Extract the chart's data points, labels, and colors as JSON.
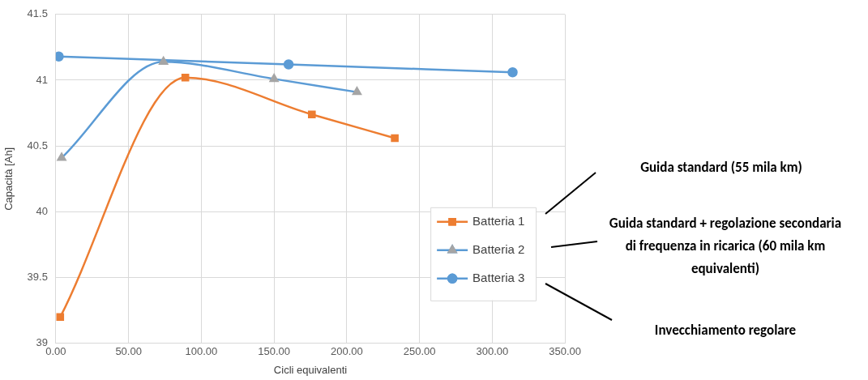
{
  "chart_data": {
    "type": "line",
    "xlabel": "Cicli equivalenti",
    "ylabel": "Capacità [Ah]",
    "xlim": [
      0,
      350
    ],
    "xticks": [
      {
        "value": 0,
        "label": "0.00"
      },
      {
        "value": 50,
        "label": "50.00"
      },
      {
        "value": 100,
        "label": "100.00"
      },
      {
        "value": 150,
        "label": "150.00"
      },
      {
        "value": 200,
        "label": "200.00"
      },
      {
        "value": 250,
        "label": "250.00"
      },
      {
        "value": 300,
        "label": "300.00"
      },
      {
        "value": 350,
        "label": "350.00"
      }
    ],
    "ylim": [
      39,
      41.5
    ],
    "yticks": [
      39,
      39.5,
      40,
      40.5,
      41,
      41.5
    ],
    "grid": true,
    "legend": "bottom right",
    "series": [
      {
        "name": "Batteria 1",
        "color": "#ed7d31",
        "marker": "square",
        "x": [
          3,
          89,
          176,
          233
        ],
        "values": [
          39.2,
          41.02,
          40.74,
          40.56
        ]
      },
      {
        "name": "Batteria 2",
        "color": "#5b9bd5",
        "colors": [
          "#a5a5a5",
          "#a5a5a5",
          "#a5a5a5",
          "#a5a5a5"
        ],
        "marker": "triangle",
        "x": [
          4,
          74,
          150,
          207
        ],
        "values": [
          40.41,
          41.14,
          41.01,
          40.91
        ]
      },
      {
        "name": "Batteria 3",
        "color": "#5b9bd5",
        "marker": "circle",
        "x": [
          2,
          160,
          314
        ],
        "values": [
          41.18,
          41.12,
          41.06
        ]
      }
    ],
    "annotations": [
      "Guida standard (55 mila km)",
      "Guida standard + regolazione secondaria di frequenza in ricarica (60 mila km equivalenti)",
      "Invecchiamento regolare"
    ]
  }
}
